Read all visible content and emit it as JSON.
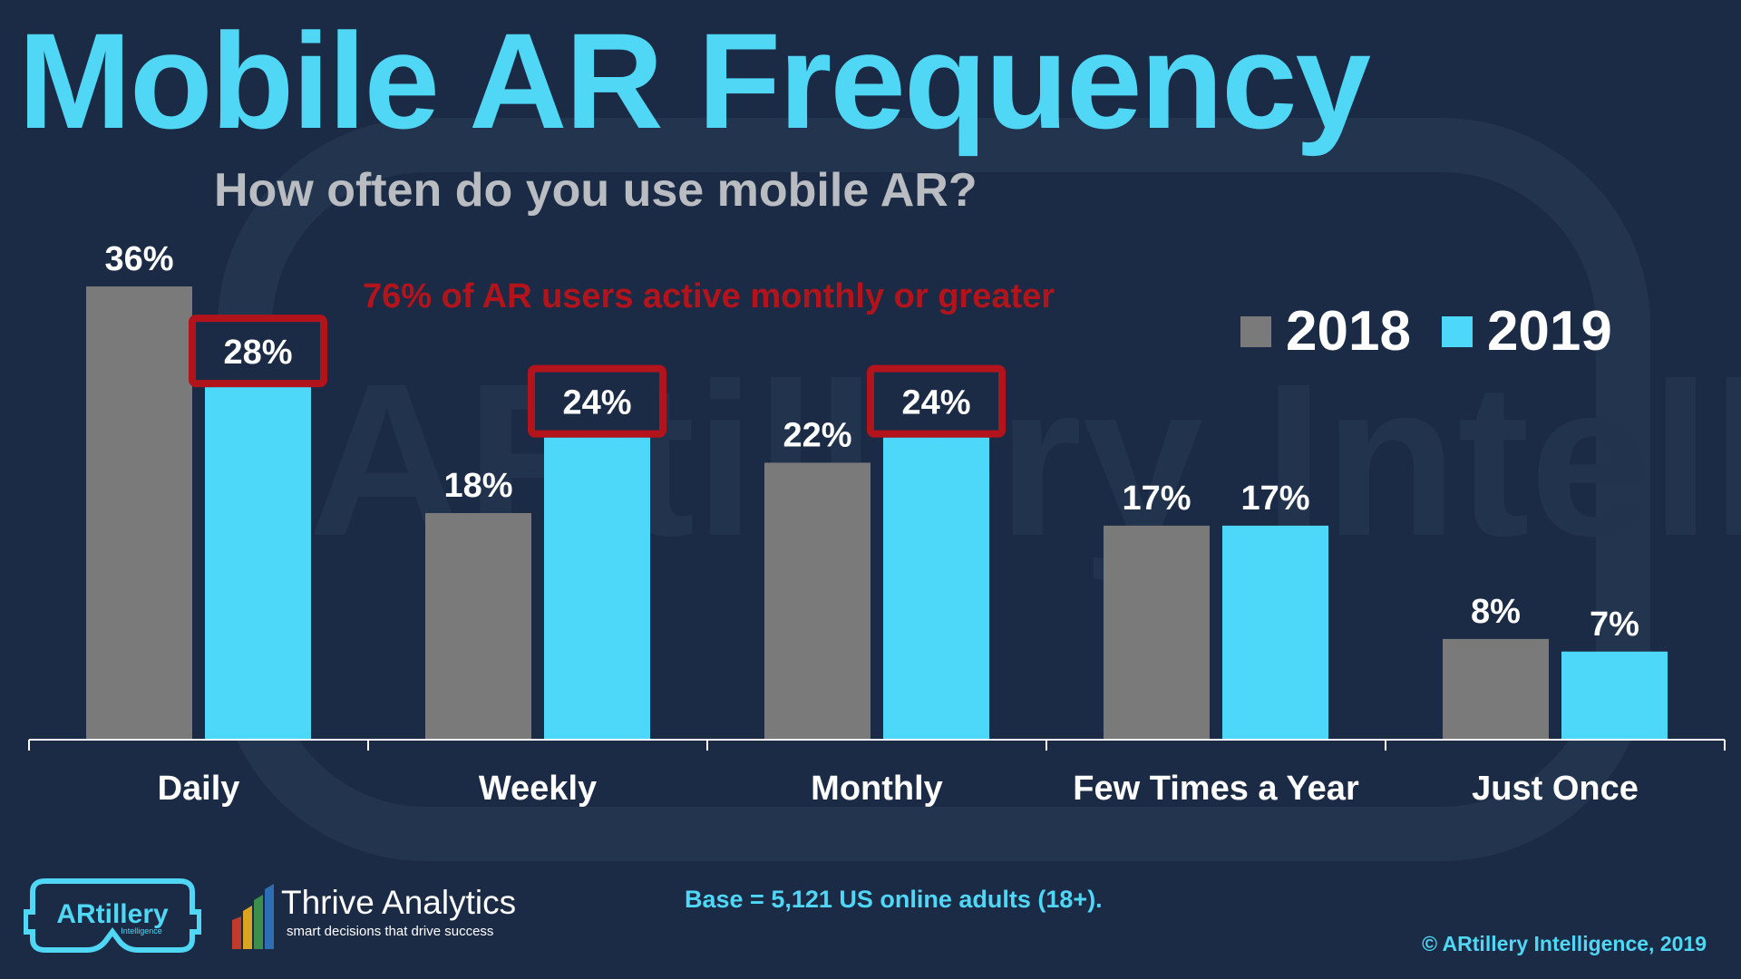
{
  "title": "Mobile AR Frequency",
  "subtitle": "How often do you use mobile AR?",
  "callout": "76% of AR users active monthly or greater",
  "base_note": "Base = 5,121 US online adults (18+).",
  "copyright": "© ARtillery Intelligence, 2019",
  "watermark": "ARtillery Intelligence",
  "logos": {
    "artillery": {
      "name": "ARtillery",
      "sub": "Intelligence"
    },
    "thrive": {
      "name": "Thrive Analytics",
      "tagline": "smart decisions that drive success"
    }
  },
  "colors": {
    "background": "#1c2b45",
    "series_2018": "#7a7a7a",
    "series_2019": "#4dd7f8",
    "highlight": "#b3141c",
    "accent": "#4fd7f5"
  },
  "chart_data": {
    "type": "bar",
    "title": "Mobile AR Frequency",
    "subtitle": "How often do you use mobile AR?",
    "categories": [
      "Daily",
      "Weekly",
      "Monthly",
      "Few Times a Year",
      "Just Once"
    ],
    "series": [
      {
        "name": "2018",
        "values": [
          36,
          18,
          22,
          17,
          8
        ],
        "labels": [
          "36%",
          "18%",
          "22%",
          "17%",
          "8%"
        ]
      },
      {
        "name": "2019",
        "values": [
          28,
          24,
          24,
          17,
          7
        ],
        "labels": [
          "28%",
          "24%",
          "24%",
          "17%",
          "7%"
        ]
      }
    ],
    "highlighted": [
      {
        "series": "2019",
        "category": "Daily"
      },
      {
        "series": "2019",
        "category": "Weekly"
      },
      {
        "series": "2019",
        "category": "Monthly"
      }
    ],
    "ylim": [
      0,
      36
    ],
    "xlabel": "",
    "ylabel": "",
    "grid": false,
    "legend_position": "top-right"
  }
}
